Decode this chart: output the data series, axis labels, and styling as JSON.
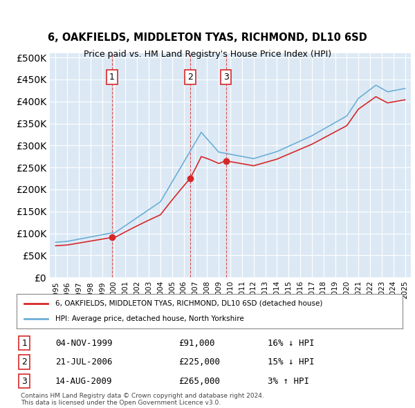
{
  "title1": "6, OAKFIELDS, MIDDLETON TYAS, RICHMOND, DL10 6SD",
  "title2": "Price paid vs. HM Land Registry's House Price Index (HPI)",
  "bg_color": "#dce9f5",
  "plot_bg": "#dce9f5",
  "sale_dates": [
    1999.84,
    2006.55,
    2009.62
  ],
  "sale_prices": [
    91000,
    225000,
    265000
  ],
  "sale_labels": [
    "1",
    "2",
    "3"
  ],
  "legend_line1": "6, OAKFIELDS, MIDDLETON TYAS, RICHMOND, DL10 6SD (detached house)",
  "legend_line2": "HPI: Average price, detached house, North Yorkshire",
  "table_rows": [
    [
      "1",
      "04-NOV-1999",
      "£91,000",
      "16% ↓ HPI"
    ],
    [
      "2",
      "21-JUL-2006",
      "£225,000",
      "15% ↓ HPI"
    ],
    [
      "3",
      "14-AUG-2009",
      "£265,000",
      "3% ↑ HPI"
    ]
  ],
  "footer": "Contains HM Land Registry data © Crown copyright and database right 2024.\nThis data is licensed under the Open Government Licence v3.0.",
  "hpi_color": "#6baed6",
  "price_color": "#d62728",
  "sale_marker_color": "#d62728",
  "vline_color": "#d62728",
  "ylim": [
    0,
    510000
  ],
  "yticks": [
    0,
    50000,
    100000,
    150000,
    200000,
    250000,
    300000,
    350000,
    400000,
    450000,
    500000
  ],
  "xlim_start": 1994.5,
  "xlim_end": 2025.5
}
